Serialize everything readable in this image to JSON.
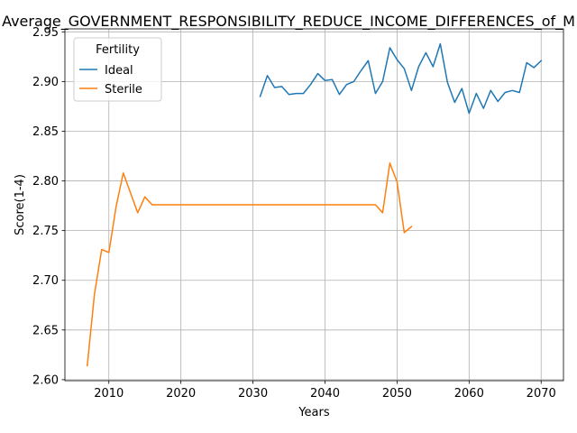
{
  "chart_data": {
    "type": "line",
    "title": "Average_GOVERNMENT_RESPONSIBILITY_REDUCE_INCOME_DIFFERENCES_of_M",
    "xlabel": "Years",
    "ylabel": "Score(1-4)",
    "xlim": [
      2003.9,
      2073.1
    ],
    "ylim": [
      2.599,
      2.953
    ],
    "xticks": [
      2010,
      2020,
      2030,
      2040,
      2050,
      2060,
      2070
    ],
    "yticks": [
      2.6,
      2.65,
      2.7,
      2.75,
      2.8,
      2.85,
      2.9,
      2.95
    ],
    "ytick_labels": [
      "2.60",
      "2.65",
      "2.70",
      "2.75",
      "2.80",
      "2.85",
      "2.90",
      "2.95"
    ],
    "grid": true,
    "legend": {
      "title": "Fertility",
      "placement": "top-left"
    },
    "series": [
      {
        "name": "Ideal",
        "color": "#1f77b4",
        "x": [
          2031,
          2032,
          2033,
          2034,
          2035,
          2036,
          2037,
          2038,
          2039,
          2040,
          2041,
          2042,
          2043,
          2044,
          2045,
          2046,
          2047,
          2048,
          2049,
          2050,
          2051,
          2052,
          2053,
          2054,
          2055,
          2056,
          2057,
          2058,
          2059,
          2060,
          2061,
          2062,
          2063,
          2064,
          2065,
          2066,
          2067,
          2068,
          2069,
          2070
        ],
        "y": [
          2.885,
          2.906,
          2.894,
          2.895,
          2.887,
          2.888,
          2.888,
          2.897,
          2.908,
          2.901,
          2.902,
          2.887,
          2.897,
          2.9,
          2.911,
          2.921,
          2.888,
          2.9,
          2.934,
          2.922,
          2.913,
          2.891,
          2.915,
          2.929,
          2.915,
          2.938,
          2.899,
          2.879,
          2.893,
          2.868,
          2.888,
          2.873,
          2.891,
          2.88,
          2.889,
          2.891,
          2.889,
          2.919,
          2.914,
          2.921
        ]
      },
      {
        "name": "Sterile",
        "color": "#ff7f0e",
        "x": [
          2007,
          2008,
          2009,
          2010,
          2011,
          2012,
          2013,
          2014,
          2015,
          2016,
          2017,
          2018,
          2019,
          2020,
          2021,
          2022,
          2023,
          2024,
          2025,
          2026,
          2027,
          2028,
          2029,
          2030,
          2031,
          2032,
          2033,
          2034,
          2035,
          2036,
          2037,
          2038,
          2039,
          2040,
          2041,
          2042,
          2043,
          2044,
          2045,
          2046,
          2047,
          2048,
          2049,
          2050,
          2051,
          2052
        ],
        "y": [
          2.614,
          2.686,
          2.731,
          2.728,
          2.774,
          2.808,
          2.788,
          2.768,
          2.784,
          2.776,
          2.776,
          2.776,
          2.776,
          2.776,
          2.776,
          2.776,
          2.776,
          2.776,
          2.776,
          2.776,
          2.776,
          2.776,
          2.776,
          2.776,
          2.776,
          2.776,
          2.776,
          2.776,
          2.776,
          2.776,
          2.776,
          2.776,
          2.776,
          2.776,
          2.776,
          2.776,
          2.776,
          2.776,
          2.776,
          2.776,
          2.776,
          2.768,
          2.818,
          2.799,
          2.748,
          2.754
        ]
      }
    ]
  }
}
